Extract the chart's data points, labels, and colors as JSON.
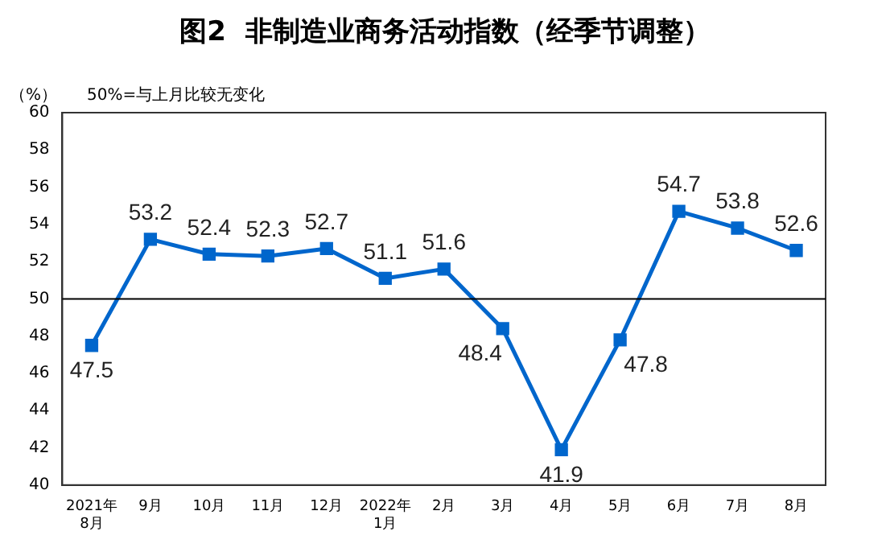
{
  "chart_data": {
    "type": "line",
    "title": "图2  非制造业商务活动指数（经季节调整）",
    "ylabel": "（%）",
    "annotations": [
      "50%=与上月比较无变化"
    ],
    "categories": [
      "2021年\n8月",
      "9月",
      "10月",
      "11月",
      "12月",
      "2022年\n1月",
      "2月",
      "3月",
      "4月",
      "5月",
      "6月",
      "7月",
      "8月"
    ],
    "series": [
      {
        "color": "#0066cc",
        "values": [
          47.5,
          53.2,
          52.4,
          52.3,
          52.7,
          51.1,
          51.6,
          48.4,
          41.9,
          47.8,
          54.7,
          53.8,
          52.6
        ]
      }
    ],
    "ylim": [
      40,
      60
    ],
    "yticks": [
      40,
      42,
      44,
      46,
      48,
      50,
      52,
      54,
      56,
      58,
      60
    ],
    "grid": false,
    "legend": false,
    "marker": "square",
    "line_style": "solid",
    "data_labels": true,
    "ref_lines": [
      {
        "axis": "y",
        "value": 50,
        "color": "#000000"
      }
    ]
  }
}
